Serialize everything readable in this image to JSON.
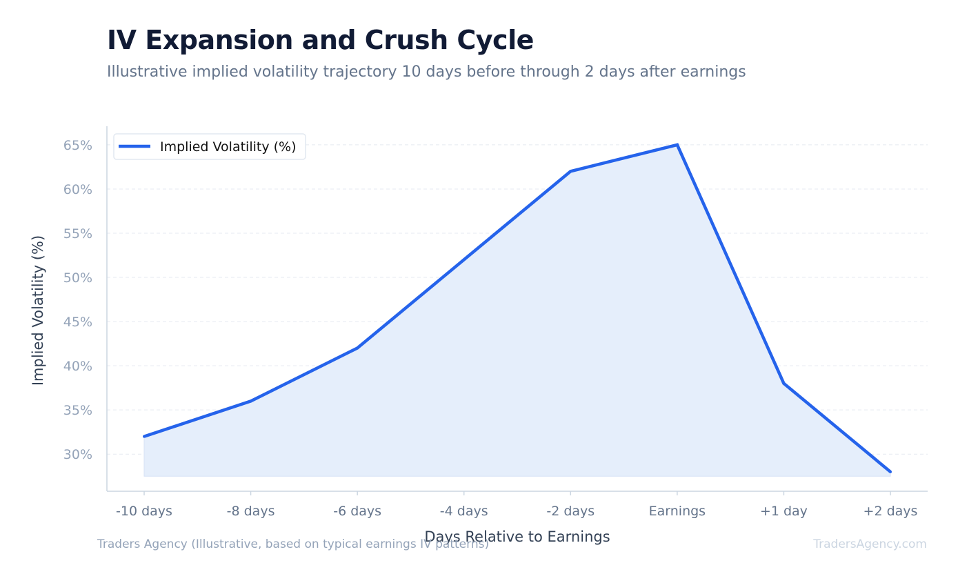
{
  "header": {
    "title": "IV Expansion and Crush Cycle",
    "subtitle": "Illustrative implied volatility trajectory 10 days before through 2 days after earnings"
  },
  "footer": {
    "source": "Traders Agency (Illustrative, based on typical earnings IV patterns)",
    "brand": "TradersAgency.com"
  },
  "colors": {
    "line": "#2563eb",
    "fill": "#e5eefb",
    "grid": "#e5e9f0",
    "axis": "#cbd5e1"
  },
  "chart_data": {
    "type": "area",
    "title": "IV Expansion and Crush Cycle",
    "subtitle": "Illustrative implied volatility trajectory 10 days before through 2 days after earnings",
    "xlabel": "Days Relative to Earnings",
    "ylabel": "Implied Volatility (%)",
    "categories": [
      "-10 days",
      "-8 days",
      "-6 days",
      "-4 days",
      "-2 days",
      "Earnings",
      "+1 day",
      "+2 days"
    ],
    "series": [
      {
        "name": "Implied Volatility (%)",
        "values": [
          32,
          36,
          42,
          52,
          62,
          65,
          38,
          28
        ]
      }
    ],
    "yticks": [
      30,
      35,
      40,
      45,
      50,
      55,
      60,
      65
    ],
    "ytick_labels": [
      "30%",
      "35%",
      "40%",
      "45%",
      "50%",
      "55%",
      "60%",
      "65%"
    ],
    "ylim": [
      25.8,
      67.1
    ],
    "fill_baseline": 27.5,
    "grid": true,
    "legend_position": "top-left"
  }
}
